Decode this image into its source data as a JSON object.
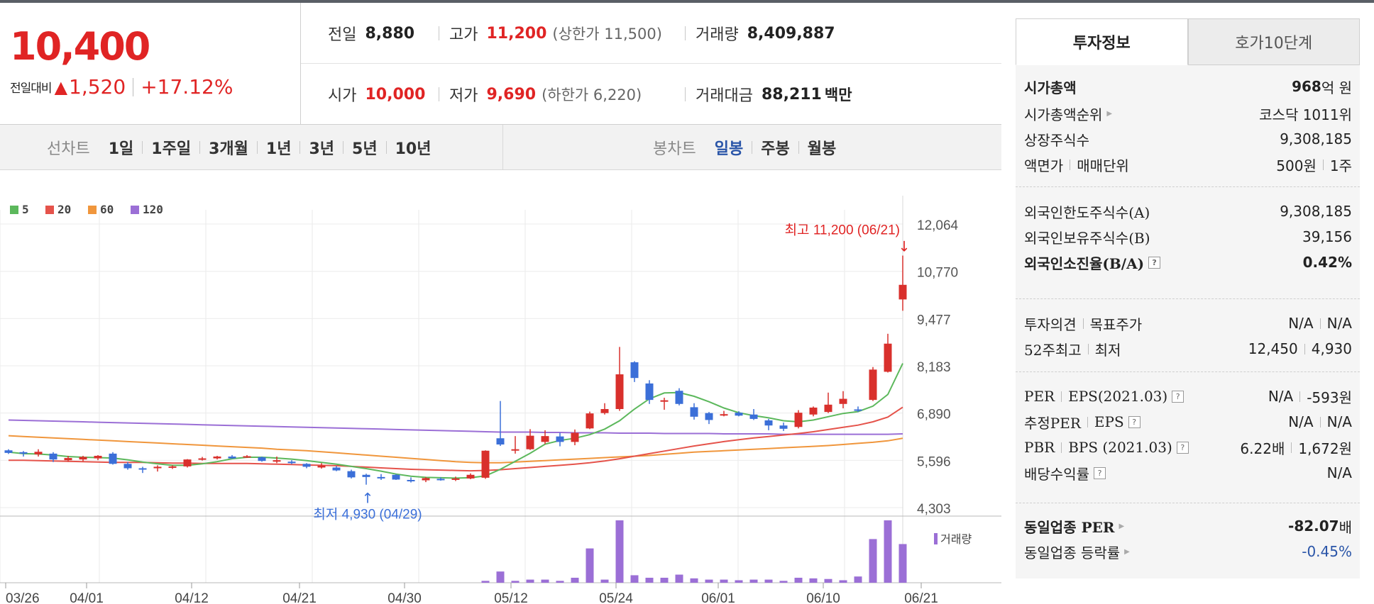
{
  "quote": {
    "price": "10,400",
    "change_label": "전일대비",
    "change_arrow": "▲",
    "change_value": "1,520",
    "change_pct": "+17.12%",
    "prev_close_label": "전일",
    "prev_close": "8,880",
    "high_label": "고가",
    "high": "11,200",
    "upper_limit": "(상한가 11,500)",
    "volume_label": "거래량",
    "volume": "8,409,887",
    "open_label": "시가",
    "open": "10,000",
    "low_label": "저가",
    "low": "9,690",
    "lower_limit": "(하한가 6,220)",
    "amount_label": "거래대금",
    "amount": "88,211",
    "amount_unit": "백만"
  },
  "periods": {
    "line_title": "선차트",
    "line_items": [
      "1일",
      "1주일",
      "3개월",
      "1년",
      "3년",
      "5년",
      "10년"
    ],
    "candle_title": "봉차트",
    "candle_items": [
      "일봉",
      "주봉",
      "월봉"
    ],
    "active_candle": "일봉"
  },
  "chart_data": {
    "type": "candlestick",
    "legend": [
      {
        "name": "5",
        "color": "#5cb85c"
      },
      {
        "name": "20",
        "color": "#e5534b"
      },
      {
        "name": "60",
        "color": "#f0963c"
      },
      {
        "name": "120",
        "color": "#9b6fd6"
      }
    ],
    "y_ticks": [
      "12,064",
      "10,770",
      "9,477",
      "8,183",
      "6,890",
      "5,596",
      "4,303"
    ],
    "ylim": [
      4303,
      12064
    ],
    "x_ticks": [
      "03/26",
      "04/01",
      "04/12",
      "04/21",
      "04/30",
      "05/12",
      "05/24",
      "06/01",
      "06/10",
      "06/21"
    ],
    "high_annotation": "최고 11,200 (06/21)",
    "low_annotation": "최저 4,930 (04/29)",
    "volume_label": "거래량",
    "candles": [
      [
        5870,
        5900,
        5770,
        5800
      ],
      [
        5820,
        5850,
        5700,
        5780
      ],
      [
        5760,
        5900,
        5700,
        5830
      ],
      [
        5780,
        5820,
        5550,
        5620
      ],
      [
        5600,
        5720,
        5560,
        5660
      ],
      [
        5620,
        5720,
        5570,
        5690
      ],
      [
        5650,
        5740,
        5600,
        5720
      ],
      [
        5780,
        5820,
        5480,
        5500
      ],
      [
        5500,
        5550,
        5340,
        5380
      ],
      [
        5380,
        5420,
        5250,
        5360
      ],
      [
        5380,
        5460,
        5290,
        5420
      ],
      [
        5420,
        5460,
        5360,
        5430
      ],
      [
        5430,
        5630,
        5400,
        5620
      ],
      [
        5620,
        5690,
        5590,
        5650
      ],
      [
        5650,
        5720,
        5620,
        5700
      ],
      [
        5700,
        5740,
        5640,
        5650
      ],
      [
        5700,
        5740,
        5660,
        5710
      ],
      [
        5680,
        5700,
        5560,
        5580
      ],
      [
        5560,
        5700,
        5520,
        5600
      ],
      [
        5560,
        5600,
        5490,
        5520
      ],
      [
        5500,
        5520,
        5380,
        5420
      ],
      [
        5400,
        5520,
        5370,
        5450
      ],
      [
        5400,
        5440,
        5300,
        5320
      ],
      [
        5300,
        5340,
        5100,
        5130
      ],
      [
        5200,
        5230,
        4930,
        5140
      ],
      [
        5140,
        5220,
        5060,
        5110
      ],
      [
        5200,
        5220,
        5060,
        5070
      ],
      [
        5060,
        5130,
        4990,
        5040
      ],
      [
        5050,
        5140,
        5000,
        5110
      ],
      [
        5090,
        5130,
        5040,
        5060
      ],
      [
        5080,
        5150,
        5030,
        5100
      ],
      [
        5100,
        5240,
        5080,
        5200
      ],
      [
        5120,
        5870,
        5090,
        5860
      ],
      [
        6200,
        7220,
        5990,
        6030
      ],
      [
        5890,
        6260,
        5780,
        5900
      ],
      [
        5900,
        6450,
        5880,
        6270
      ],
      [
        6100,
        6420,
        6040,
        6260
      ],
      [
        6250,
        6350,
        5980,
        6100
      ],
      [
        6100,
        6440,
        6010,
        6350
      ],
      [
        6470,
        6930,
        6450,
        6880
      ],
      [
        6890,
        7160,
        6850,
        7000
      ],
      [
        7000,
        8700,
        6950,
        7950
      ],
      [
        8280,
        8310,
        7740,
        7850
      ],
      [
        7700,
        7790,
        7140,
        7250
      ],
      [
        7200,
        7310,
        6980,
        7240
      ],
      [
        7500,
        7570,
        7100,
        7140
      ],
      [
        7050,
        7160,
        6710,
        6790
      ],
      [
        6890,
        6920,
        6590,
        6700
      ],
      [
        6850,
        6950,
        6800,
        6860
      ],
      [
        6900,
        6940,
        6800,
        6820
      ],
      [
        6850,
        7000,
        6700,
        6730
      ],
      [
        6690,
        6730,
        6420,
        6550
      ],
      [
        6550,
        6630,
        6400,
        6460
      ],
      [
        6510,
        6970,
        6470,
        6900
      ],
      [
        6850,
        7070,
        6800,
        7040
      ],
      [
        6920,
        7450,
        6890,
        7120
      ],
      [
        7140,
        7490,
        7020,
        7280
      ],
      [
        6990,
        7070,
        6920,
        6960
      ],
      [
        7250,
        8150,
        7220,
        8080
      ],
      [
        8020,
        9060,
        8000,
        8790
      ],
      [
        10000,
        11200,
        9690,
        10400
      ]
    ],
    "ma": {
      "5": [
        5820,
        5780,
        5770,
        5740,
        5700,
        5680,
        5670,
        5660,
        5610,
        5550,
        5500,
        5460,
        5460,
        5500,
        5560,
        5640,
        5680,
        5680,
        5660,
        5630,
        5590,
        5540,
        5490,
        5430,
        5370,
        5300,
        5220,
        5160,
        5130,
        5120,
        5110,
        5120,
        5170,
        5350,
        5570,
        5790,
        6040,
        6140,
        6200,
        6300,
        6450,
        6680,
        7000,
        7280,
        7440,
        7450,
        7350,
        7200,
        7030,
        6900,
        6820,
        6760,
        6680,
        6650,
        6700,
        6790,
        6880,
        6930,
        7080,
        7400,
        8250
      ],
      "20": [
        5600,
        5600,
        5590,
        5580,
        5570,
        5560,
        5550,
        5540,
        5540,
        5540,
        5530,
        5520,
        5520,
        5510,
        5510,
        5510,
        5510,
        5500,
        5490,
        5480,
        5470,
        5460,
        5450,
        5430,
        5410,
        5390,
        5370,
        5350,
        5340,
        5330,
        5320,
        5310,
        5320,
        5340,
        5370,
        5400,
        5430,
        5460,
        5490,
        5530,
        5580,
        5640,
        5710,
        5780,
        5850,
        5920,
        5990,
        6050,
        6110,
        6160,
        6210,
        6250,
        6290,
        6330,
        6380,
        6440,
        6500,
        6560,
        6650,
        6780,
        7050
      ],
      "60": [
        6270,
        6250,
        6230,
        6210,
        6190,
        6170,
        6150,
        6130,
        6110,
        6090,
        6070,
        6050,
        6030,
        6010,
        5990,
        5970,
        5950,
        5930,
        5900,
        5880,
        5860,
        5830,
        5800,
        5770,
        5740,
        5710,
        5680,
        5650,
        5620,
        5590,
        5560,
        5540,
        5530,
        5530,
        5550,
        5570,
        5590,
        5610,
        5630,
        5650,
        5670,
        5690,
        5710,
        5730,
        5760,
        5790,
        5820,
        5840,
        5860,
        5880,
        5900,
        5920,
        5940,
        5960,
        5980,
        6000,
        6030,
        6060,
        6090,
        6130,
        6200
      ],
      "120": [
        6700,
        6690,
        6680,
        6670,
        6660,
        6650,
        6640,
        6630,
        6620,
        6610,
        6600,
        6590,
        6580,
        6570,
        6560,
        6550,
        6540,
        6530,
        6520,
        6510,
        6500,
        6490,
        6480,
        6470,
        6460,
        6450,
        6440,
        6430,
        6420,
        6410,
        6400,
        6390,
        6380,
        6370,
        6370,
        6370,
        6360,
        6360,
        6350,
        6350,
        6350,
        6340,
        6340,
        6340,
        6330,
        6330,
        6330,
        6330,
        6320,
        6320,
        6320,
        6320,
        6310,
        6310,
        6310,
        6310,
        6310,
        6310,
        6310,
        6310,
        6320
      ]
    },
    "volumes": [
      0,
      0,
      0,
      0,
      0,
      0,
      0,
      0,
      0,
      0,
      0,
      0,
      0,
      0,
      0,
      0,
      0,
      0,
      0,
      0,
      0,
      0,
      0,
      0,
      0,
      0,
      0,
      0,
      0,
      0,
      0,
      0,
      0.03,
      0.18,
      0.03,
      0.05,
      0.05,
      0.03,
      0.08,
      0.55,
      0.05,
      1.0,
      0.12,
      0.08,
      0.08,
      0.13,
      0.07,
      0.05,
      0.05,
      0.04,
      0.05,
      0.05,
      0.03,
      0.08,
      0.07,
      0.06,
      0.04,
      0.1,
      0.7,
      1.0,
      0.62
    ],
    "candle_colors": {
      "up": "#d9302c",
      "down": "#3b6fd8"
    }
  },
  "right_panel": {
    "tabs": [
      "투자정보",
      "호가10단계"
    ],
    "s1": [
      {
        "label": "시가총액",
        "value_num": "968",
        "value_unit": "억 원"
      },
      {
        "label": "시가총액순위",
        "value": "코스닥 1011위"
      },
      {
        "label": "상장주식수",
        "value": "9,308,185"
      },
      {
        "label_a": "액면가",
        "label_b": "매매단위",
        "value_a": "500원",
        "value_b": "1주"
      }
    ],
    "s2": [
      {
        "label": "외국인한도주식수(A)",
        "value": "9,308,185"
      },
      {
        "label": "외국인보유주식수(B)",
        "value": "39,156"
      },
      {
        "label": "외국인소진율(B/A)",
        "value": "0.42%"
      }
    ],
    "s3": [
      {
        "label_a": "투자의견",
        "label_b": "목표주가",
        "value_a": "N/A",
        "value_b": "N/A"
      },
      {
        "label_a": "52주최고",
        "label_b": "최저",
        "value_a": "12,450",
        "value_b": "4,930"
      }
    ],
    "s4": [
      {
        "label_a": "PER",
        "label_b": "EPS(2021.03)",
        "value_a": "N/A",
        "value_b": "-593원"
      },
      {
        "label_a": "추정PER",
        "label_b": "EPS",
        "value_a": "N/A",
        "value_b": "N/A"
      },
      {
        "label_a": "PBR",
        "label_b": "BPS (2021.03)",
        "value_a": "6.22배",
        "value_b": "1,672원"
      },
      {
        "label": "배당수익률",
        "value": "N/A"
      }
    ],
    "s5": [
      {
        "label": "동일업종 PER",
        "value_num": "-82.07",
        "value_unit": "배"
      },
      {
        "label": "동일업종 등락률",
        "value": "-0.45%"
      }
    ],
    "help_icon": "?"
  }
}
